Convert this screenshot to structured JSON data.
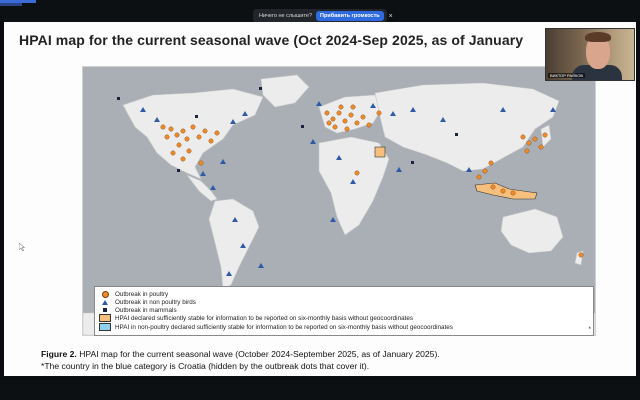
{
  "audio_prompt": {
    "question": "Ничего не слышите?",
    "button_label": "Прибавить громкость",
    "close_label": "×"
  },
  "slide": {
    "title": "HPAI map for the current seasonal wave (Oct 2024-Sep 2025, as of January",
    "legend": {
      "poultry": "Outbreak in poultry",
      "non_poultry": "Outbreak in non poultry birds",
      "mammals": "Outbreak in mammals",
      "declared_stable": "HPAI declared sufficiently stable for information to be reported  on six-monthly basis without geocoordinates",
      "non_poultry_stable": "HPAI in non-poultry declared sufficiently stable for information to be reported  on six-monthly basis without geocoordinates",
      "asterisk": "*"
    },
    "caption_line1_bold": "Figure 2.",
    "caption_line1_rest": " HPAI map for the current seasonal wave (October 2024-September 2025, as of January 2025).",
    "caption_line2": "*The country in the blue category is Croatia (hidden by the outbreak dots that cover it)."
  },
  "webcam": {
    "name_label": "ВИКТОР РАЙКОВ"
  },
  "colors": {
    "poultry": "#f28a26",
    "non_poultry": "#2f5aa8",
    "mammals": "#1a2340",
    "declared_stable": "#f6bf7e",
    "non_poultry_stable": "#8fd0ea"
  }
}
